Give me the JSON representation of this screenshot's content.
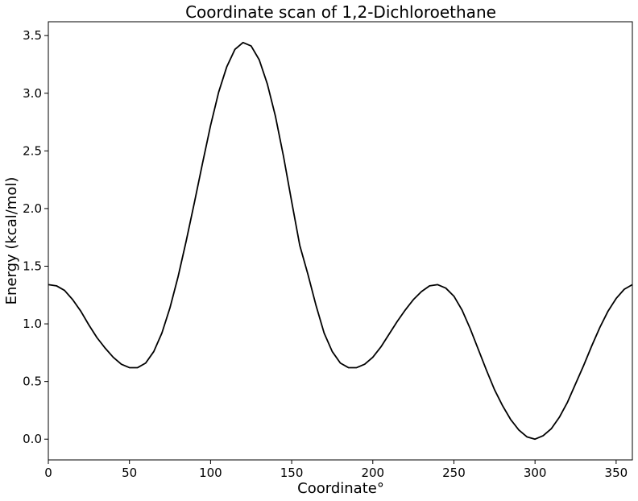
{
  "chart_data": {
    "type": "line",
    "title": "Coordinate scan of 1,2-Dichloroethane",
    "xlabel": "Coordinate°",
    "ylabel": "Energy (kcal/mol)",
    "xlim": [
      0,
      360
    ],
    "ylim": [
      -0.18,
      3.62
    ],
    "xticks": [
      0,
      50,
      100,
      150,
      200,
      250,
      300,
      350
    ],
    "yticks": [
      0.0,
      0.5,
      1.0,
      1.5,
      2.0,
      2.5,
      3.0,
      3.5
    ],
    "ytick_labels": [
      "0.0",
      "0.5",
      "1.0",
      "1.5",
      "2.0",
      "2.5",
      "3.0",
      "3.5"
    ],
    "grid": false,
    "line_color": "#000000",
    "series": [
      {
        "x": [
          0,
          5,
          10,
          15,
          20,
          25,
          30,
          35,
          40,
          45,
          50,
          55,
          60,
          65,
          70,
          75,
          80,
          85,
          90,
          95,
          100,
          105,
          110,
          115,
          120,
          125,
          130,
          135,
          140,
          145,
          150,
          155,
          160,
          165,
          170,
          175,
          180,
          185,
          190,
          195,
          200,
          205,
          210,
          215,
          220,
          225,
          230,
          235,
          240,
          245,
          250,
          255,
          260,
          265,
          270,
          275,
          280,
          285,
          290,
          295,
          300,
          305,
          310,
          315,
          320,
          325,
          330,
          335,
          340,
          345,
          350,
          355,
          360
        ],
        "y": [
          1.34,
          1.33,
          1.29,
          1.21,
          1.11,
          0.99,
          0.88,
          0.79,
          0.71,
          0.65,
          0.62,
          0.62,
          0.66,
          0.76,
          0.92,
          1.14,
          1.41,
          1.72,
          2.05,
          2.39,
          2.72,
          3.01,
          3.23,
          3.38,
          3.44,
          3.41,
          3.29,
          3.08,
          2.8,
          2.45,
          2.06,
          1.68,
          1.43,
          1.16,
          0.92,
          0.76,
          0.66,
          0.62,
          0.62,
          0.65,
          0.71,
          0.8,
          0.91,
          1.02,
          1.12,
          1.21,
          1.28,
          1.33,
          1.34,
          1.31,
          1.24,
          1.12,
          0.96,
          0.78,
          0.6,
          0.43,
          0.29,
          0.17,
          0.08,
          0.02,
          0.0,
          0.03,
          0.09,
          0.19,
          0.32,
          0.48,
          0.64,
          0.81,
          0.97,
          1.11,
          1.22,
          1.3,
          1.34
        ]
      }
    ]
  }
}
